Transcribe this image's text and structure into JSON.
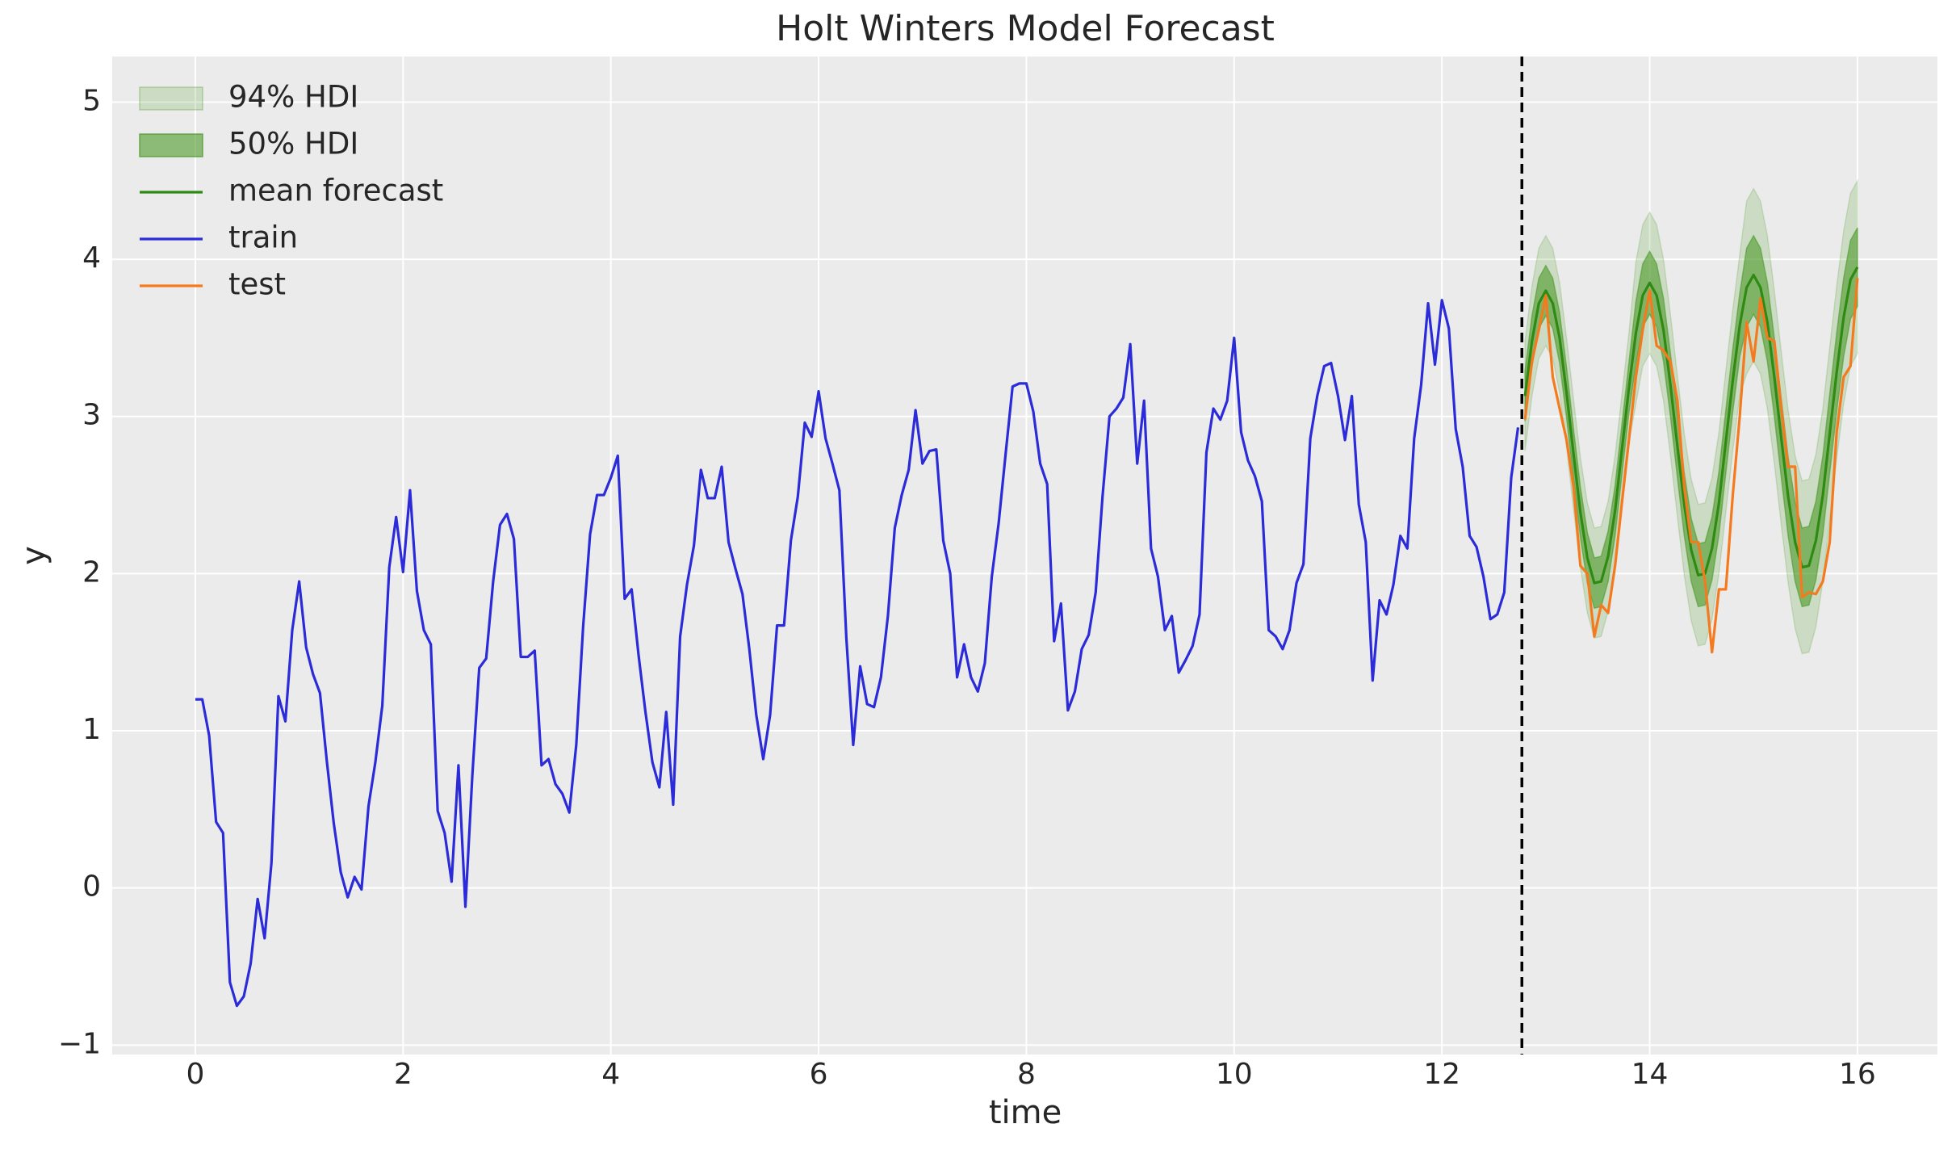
{
  "chart_data": {
    "type": "line",
    "title": "Holt Winters Model Forecast",
    "xlabel": "time",
    "ylabel": "y",
    "xlim": [
      -0.8,
      16.77
    ],
    "ylim": [
      -1.06,
      5.29
    ],
    "xticks": [
      0,
      2,
      4,
      6,
      8,
      10,
      12,
      14,
      16
    ],
    "yticks": [
      {
        "value": -1,
        "label": "−1"
      },
      0,
      1,
      2,
      3,
      4,
      5
    ],
    "grid": true,
    "legend": "upper left",
    "vline": {
      "x": 12.77,
      "color": "#000000"
    },
    "series": [
      {
        "name": "train",
        "color": "#2b2bd9",
        "x": [
          0,
          0.067,
          0.133,
          0.2,
          0.267,
          0.333,
          0.4,
          0.467,
          0.533,
          0.6,
          0.667,
          0.733,
          0.8,
          0.867,
          0.933,
          1,
          1.067,
          1.133,
          1.2,
          1.267,
          1.333,
          1.4,
          1.467,
          1.533,
          1.6,
          1.667,
          1.733,
          1.8,
          1.867,
          1.933,
          2,
          2.067,
          2.133,
          2.2,
          2.267,
          2.333,
          2.4,
          2.467,
          2.533,
          2.6,
          2.667,
          2.733,
          2.8,
          2.867,
          2.933,
          3,
          3.067,
          3.133,
          3.2,
          3.267,
          3.333,
          3.4,
          3.467,
          3.533,
          3.6,
          3.667,
          3.733,
          3.8,
          3.867,
          3.933,
          4,
          4.067,
          4.133,
          4.2,
          4.267,
          4.333,
          4.4,
          4.467,
          4.533,
          4.6,
          4.667,
          4.733,
          4.8,
          4.867,
          4.933,
          5,
          5.067,
          5.133,
          5.2,
          5.267,
          5.333,
          5.4,
          5.467,
          5.533,
          5.6,
          5.667,
          5.733,
          5.8,
          5.867,
          5.933,
          6,
          6.067,
          6.133,
          6.2,
          6.267,
          6.333,
          6.4,
          6.467,
          6.533,
          6.6,
          6.667,
          6.733,
          6.8,
          6.867,
          6.933,
          7,
          7.067,
          7.133,
          7.2,
          7.267,
          7.333,
          7.4,
          7.467,
          7.533,
          7.6,
          7.667,
          7.733,
          7.8,
          7.867,
          7.933,
          8,
          8.067,
          8.133,
          8.2,
          8.267,
          8.333,
          8.4,
          8.467,
          8.533,
          8.6,
          8.667,
          8.733,
          8.8,
          8.867,
          8.933,
          9,
          9.067,
          9.133,
          9.2,
          9.267,
          9.333,
          9.4,
          9.467,
          9.533,
          9.6,
          9.667,
          9.733,
          9.8,
          9.867,
          9.933,
          10,
          10.067,
          10.133,
          10.2,
          10.267,
          10.333,
          10.4,
          10.467,
          10.533,
          10.6,
          10.667,
          10.733,
          10.8,
          10.867,
          10.933,
          11,
          11.067,
          11.133,
          11.2,
          11.267,
          11.333,
          11.4,
          11.467,
          11.533,
          11.6,
          11.667,
          11.733,
          11.8,
          11.867,
          11.933,
          12,
          12.067,
          12.133,
          12.2,
          12.267,
          12.333,
          12.4,
          12.467,
          12.533,
          12.6,
          12.667,
          12.733
        ],
        "values": [
          1.2,
          1.2,
          0.97,
          0.42,
          0.35,
          -0.6,
          -0.75,
          -0.69,
          -0.48,
          -0.07,
          -0.32,
          0.16,
          1.22,
          1.06,
          1.64,
          1.95,
          1.53,
          1.36,
          1.24,
          0.8,
          0.41,
          0.1,
          -0.06,
          0.07,
          -0.01,
          0.52,
          0.8,
          1.16,
          2.04,
          2.36,
          2.01,
          2.53,
          1.89,
          1.64,
          1.55,
          0.49,
          0.35,
          0.04,
          0.78,
          -0.12,
          0.72,
          1.4,
          1.46,
          1.95,
          2.31,
          2.38,
          2.22,
          1.47,
          1.47,
          1.51,
          0.78,
          0.82,
          0.66,
          0.6,
          0.48,
          0.91,
          1.66,
          2.25,
          2.5,
          2.5,
          2.61,
          2.75,
          1.84,
          1.9,
          1.48,
          1.12,
          0.8,
          0.64,
          1.12,
          0.53,
          1.6,
          1.93,
          2.18,
          2.66,
          2.48,
          2.48,
          2.68,
          2.2,
          2.03,
          1.87,
          1.52,
          1.1,
          0.82,
          1.1,
          1.67,
          1.67,
          2.21,
          2.49,
          2.96,
          2.87,
          3.16,
          2.86,
          2.7,
          2.53,
          1.59,
          0.91,
          1.41,
          1.17,
          1.15,
          1.34,
          1.73,
          2.29,
          2.5,
          2.66,
          3.04,
          2.7,
          2.78,
          2.79,
          2.21,
          2.0,
          1.34,
          1.55,
          1.34,
          1.25,
          1.43,
          1.98,
          2.32,
          2.76,
          3.19,
          3.21,
          3.21,
          3.03,
          2.7,
          2.57,
          1.57,
          1.81,
          1.13,
          1.25,
          1.52,
          1.61,
          1.88,
          2.49,
          3.0,
          3.05,
          3.12,
          3.46,
          2.7,
          3.1,
          2.16,
          1.98,
          1.64,
          1.73,
          1.37,
          1.45,
          1.54,
          1.74,
          2.77,
          3.05,
          2.98,
          3.1,
          3.5,
          2.9,
          2.72,
          2.62,
          2.46,
          1.64,
          1.6,
          1.52,
          1.64,
          1.94,
          2.06,
          2.86,
          3.13,
          3.32,
          3.34,
          3.13,
          2.85,
          3.13,
          2.44,
          2.2,
          1.32,
          1.83,
          1.74,
          1.93,
          2.24,
          2.16,
          2.86,
          3.2,
          3.72,
          3.33,
          3.74,
          3.56,
          2.92,
          2.68,
          2.24,
          2.17,
          1.98,
          1.71,
          1.74,
          1.88,
          2.61,
          2.93
        ]
      },
      {
        "name": "test",
        "color": "#f57a1e",
        "x": [
          12.8,
          12.867,
          12.933,
          13,
          13.067,
          13.133,
          13.2,
          13.267,
          13.333,
          13.4,
          13.467,
          13.533,
          13.6,
          13.667,
          13.733,
          13.8,
          13.867,
          13.933,
          14,
          14.067,
          14.133,
          14.2,
          14.267,
          14.333,
          14.4,
          14.467,
          14.533,
          14.6,
          14.667,
          14.733,
          14.8,
          14.867,
          14.933,
          15,
          15.067,
          15.133,
          15.2,
          15.267,
          15.333,
          15.4,
          15.467,
          15.533,
          15.6,
          15.667,
          15.733,
          15.8,
          15.867,
          15.933,
          16
        ],
        "values": [
          2.98,
          3.35,
          3.55,
          3.77,
          3.25,
          3.05,
          2.85,
          2.55,
          2.05,
          2.0,
          1.6,
          1.8,
          1.75,
          2.05,
          2.45,
          2.85,
          3.25,
          3.55,
          3.8,
          3.45,
          3.42,
          3.35,
          3.1,
          2.55,
          2.2,
          2.2,
          1.95,
          1.5,
          1.9,
          1.9,
          2.5,
          3.0,
          3.6,
          3.35,
          3.75,
          3.5,
          3.48,
          3.05,
          2.68,
          2.68,
          1.85,
          1.88,
          1.87,
          1.95,
          2.2,
          2.9,
          3.25,
          3.32,
          3.88
        ]
      }
    ],
    "forecast": {
      "x": [
        12.8,
        12.867,
        12.933,
        13,
        13.067,
        13.133,
        13.2,
        13.267,
        13.333,
        13.4,
        13.467,
        13.533,
        13.6,
        13.667,
        13.733,
        13.8,
        13.867,
        13.933,
        14,
        14.067,
        14.133,
        14.2,
        14.267,
        14.333,
        14.4,
        14.467,
        14.533,
        14.6,
        14.667,
        14.733,
        14.8,
        14.867,
        14.933,
        15,
        15.067,
        15.133,
        15.2,
        15.267,
        15.333,
        15.4,
        15.467,
        15.533,
        15.6,
        15.667,
        15.733,
        15.8,
        15.867,
        15.933,
        16
      ],
      "bands": [
        {
          "name": "94% HDI",
          "color": "#4c9a2a",
          "opacity": 0.2,
          "lower": [
            2.78,
            3.13,
            3.37,
            3.45,
            3.37,
            3.15,
            2.8,
            2.41,
            2.04,
            1.75,
            1.59,
            1.6,
            1.76,
            2.05,
            2.44,
            2.83,
            3.08,
            3.32,
            3.4,
            3.32,
            3.1,
            2.75,
            2.36,
            1.99,
            1.7,
            1.54,
            1.55,
            1.71,
            2.0,
            2.39,
            2.78,
            3.13,
            3.27,
            3.35,
            3.27,
            3.05,
            2.7,
            2.31,
            1.94,
            1.65,
            1.49,
            1.5,
            1.66,
            1.95,
            2.34,
            2.73,
            3.08,
            3.32,
            3.4
          ],
          "upper": [
            3.48,
            3.83,
            4.07,
            4.15,
            4.07,
            3.85,
            3.5,
            3.11,
            2.74,
            2.45,
            2.29,
            2.3,
            2.46,
            2.75,
            3.14,
            3.53,
            3.98,
            4.22,
            4.3,
            4.22,
            4.0,
            3.65,
            3.26,
            2.89,
            2.6,
            2.44,
            2.45,
            2.61,
            2.9,
            3.29,
            3.68,
            4.03,
            4.37,
            4.45,
            4.37,
            4.15,
            3.8,
            3.41,
            3.04,
            2.75,
            2.59,
            2.6,
            2.76,
            3.05,
            3.44,
            3.83,
            4.18,
            4.42,
            4.5
          ]
        },
        {
          "name": "50% HDI",
          "color": "#4c9a2a",
          "opacity": 0.6,
          "lower": [
            2.97,
            3.32,
            3.56,
            3.64,
            3.56,
            3.34,
            2.99,
            2.6,
            2.23,
            1.94,
            1.78,
            1.79,
            1.95,
            2.24,
            2.63,
            3.02,
            3.33,
            3.57,
            3.65,
            3.57,
            3.35,
            3.0,
            2.61,
            2.24,
            1.95,
            1.79,
            1.8,
            1.96,
            2.25,
            2.64,
            3.03,
            3.38,
            3.57,
            3.65,
            3.57,
            3.35,
            3.0,
            2.61,
            2.24,
            1.95,
            1.79,
            1.8,
            1.96,
            2.25,
            2.64,
            3.03,
            3.38,
            3.62,
            3.7
          ],
          "upper": [
            3.29,
            3.64,
            3.88,
            3.96,
            3.88,
            3.66,
            3.31,
            2.92,
            2.55,
            2.26,
            2.1,
            2.11,
            2.27,
            2.56,
            2.95,
            3.34,
            3.73,
            3.97,
            4.05,
            3.97,
            3.75,
            3.4,
            3.01,
            2.64,
            2.35,
            2.19,
            2.2,
            2.36,
            2.65,
            3.04,
            3.43,
            3.78,
            4.07,
            4.15,
            4.07,
            3.85,
            3.5,
            3.11,
            2.74,
            2.45,
            2.29,
            2.3,
            2.46,
            2.75,
            3.14,
            3.53,
            3.88,
            4.12,
            4.2
          ]
        }
      ],
      "mean": {
        "name": "mean forecast",
        "color": "#2e8a12",
        "values": [
          3.13,
          3.48,
          3.72,
          3.8,
          3.72,
          3.5,
          3.15,
          2.76,
          2.39,
          2.1,
          1.94,
          1.95,
          2.11,
          2.4,
          2.79,
          3.18,
          3.53,
          3.77,
          3.85,
          3.77,
          3.55,
          3.2,
          2.81,
          2.44,
          2.15,
          1.99,
          2.0,
          2.16,
          2.45,
          2.84,
          3.23,
          3.58,
          3.82,
          3.9,
          3.82,
          3.6,
          3.25,
          2.86,
          2.49,
          2.2,
          2.04,
          2.05,
          2.21,
          2.5,
          2.89,
          3.28,
          3.63,
          3.87,
          3.95
        ]
      }
    }
  }
}
